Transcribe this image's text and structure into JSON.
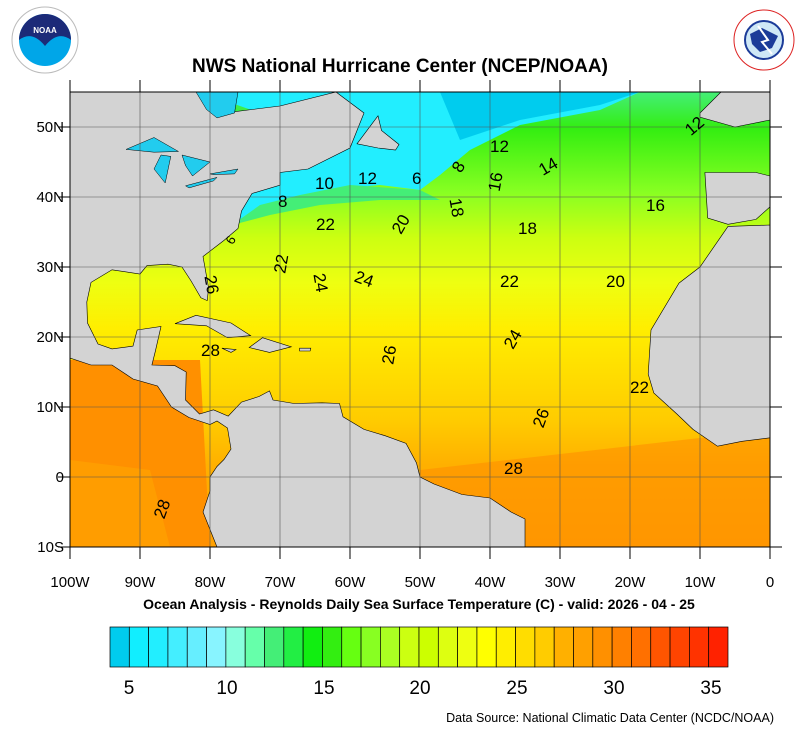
{
  "header": {
    "title": "NWS National Hurricane Center (NCEP/NOAA)",
    "left_logo": "NOAA",
    "right_logo": "NATIONAL WEATHER SERVICE"
  },
  "map": {
    "lon_range": [
      -100,
      0
    ],
    "lat_range": [
      -10,
      55
    ],
    "lat_labels": [
      "50N",
      "40N",
      "30N",
      "20N",
      "10N",
      "0",
      "10S"
    ],
    "lon_labels": [
      "100W",
      "90W",
      "80W",
      "70W",
      "60W",
      "50W",
      "40W",
      "30W",
      "20W",
      "10W",
      "0"
    ],
    "land_color": "#d3d3d3",
    "contour_labels": [
      "12",
      "12",
      "14",
      "6",
      "8",
      "16",
      "12",
      "10",
      "8",
      "6",
      "22",
      "20",
      "18",
      "18",
      "16",
      "22",
      "24",
      "24",
      "22",
      "20",
      "26",
      "28",
      "26",
      "24",
      "22",
      "26",
      "28",
      "28"
    ]
  },
  "subtitle": "Ocean Analysis - Reynolds Daily Sea Surface Temperature (C) - valid: 2026 - 04 - 25",
  "colorbar": {
    "min": 4,
    "max": 36,
    "tick_labels": [
      "5",
      "10",
      "15",
      "20",
      "25",
      "30",
      "35"
    ],
    "colors": [
      "#00ccee",
      "#11eeff",
      "#22eeff",
      "#44eeff",
      "#66eeff",
      "#88f4ff",
      "#88ffdd",
      "#66ffaa",
      "#44ee77",
      "#22ee44",
      "#11ee11",
      "#33ee11",
      "#66ff11",
      "#88ff22",
      "#aaff22",
      "#ccff11",
      "#ccff00",
      "#ddff11",
      "#eeff11",
      "#ffff00",
      "#ffee00",
      "#ffdd00",
      "#ffcc00",
      "#ffb000",
      "#ffa000",
      "#ff9000",
      "#ff8000",
      "#ff7000",
      "#ff5500",
      "#ff4400",
      "#ff3300",
      "#ff2200"
    ]
  },
  "footer": {
    "source": "Data Source: National Climatic Data Center (NCDC/NOAA)"
  }
}
